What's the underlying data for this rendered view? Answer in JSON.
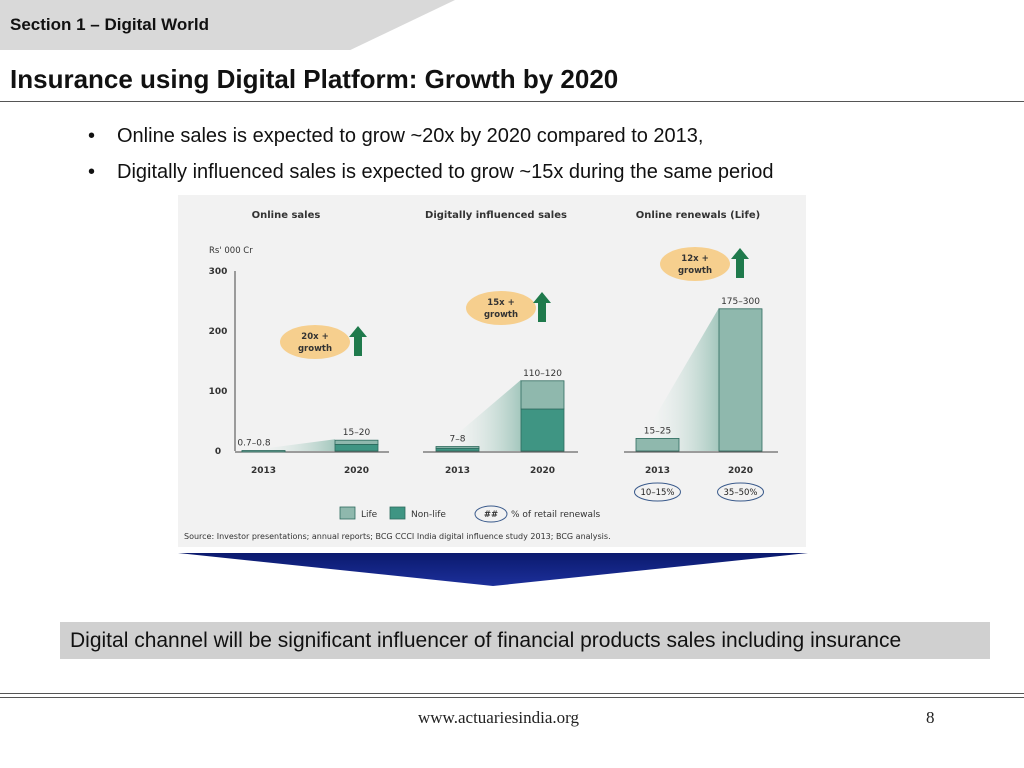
{
  "section": {
    "label": "Section 1 – Digital World"
  },
  "slide": {
    "title": "Insurance using Digital Platform: Growth by 2020"
  },
  "bullets": [
    {
      "marker": "•",
      "text": "Online sales is expected to grow ~20x by 2020 compared to 2013,"
    },
    {
      "marker": "•",
      "text": "Digitally influenced sales is expected to grow ~15x during the same period"
    }
  ],
  "conclusion": "Digital channel will be significant influencer of financial products sales including insurance",
  "footer": {
    "url": "www.actuariesindia.org",
    "page": "8"
  },
  "colors": {
    "life": "#8fb8ad",
    "nonlife": "#3f9583",
    "badge": "#f6cf8e",
    "arrow": "#1f7a4c",
    "chevron": "#13237f"
  },
  "chart_data": {
    "type": "bar",
    "unit_label": "Rs' 000 Cr",
    "ylim": [
      0,
      300
    ],
    "yticks": [
      0,
      100,
      200,
      300
    ],
    "source": "Source: Investor presentations; annual reports; BCG CCCI India digital influence study 2013; BCG analysis.",
    "legend": {
      "life": "Life",
      "nonlife": "Non-life",
      "pct_marker": "##",
      "pct": "% of retail renewals"
    },
    "panels": [
      {
        "title": "Online sales",
        "badge": [
          "20x +",
          "growth"
        ],
        "bars": [
          {
            "year": "2013",
            "label": "0.7–0.8",
            "life": 0.4,
            "nonlife": 0.35
          },
          {
            "year": "2020",
            "label": "15–20",
            "life": 7,
            "nonlife": 11
          }
        ]
      },
      {
        "title": "Digitally influenced sales",
        "badge": [
          "15x +",
          "growth"
        ],
        "bars": [
          {
            "year": "2013",
            "label": "7–8",
            "life": 3,
            "nonlife": 4.5
          },
          {
            "year": "2020",
            "label": "110–120",
            "life": 47,
            "nonlife": 70
          }
        ]
      },
      {
        "title": "Online renewals (Life)",
        "badge": [
          "12x +",
          "growth"
        ],
        "bars": [
          {
            "year": "2013",
            "label": "15–25",
            "life": 21,
            "nonlife": 0,
            "pct": "10–15%"
          },
          {
            "year": "2020",
            "label": "175–300",
            "life": 237,
            "nonlife": 0,
            "pct": "35–50%"
          }
        ]
      }
    ]
  }
}
